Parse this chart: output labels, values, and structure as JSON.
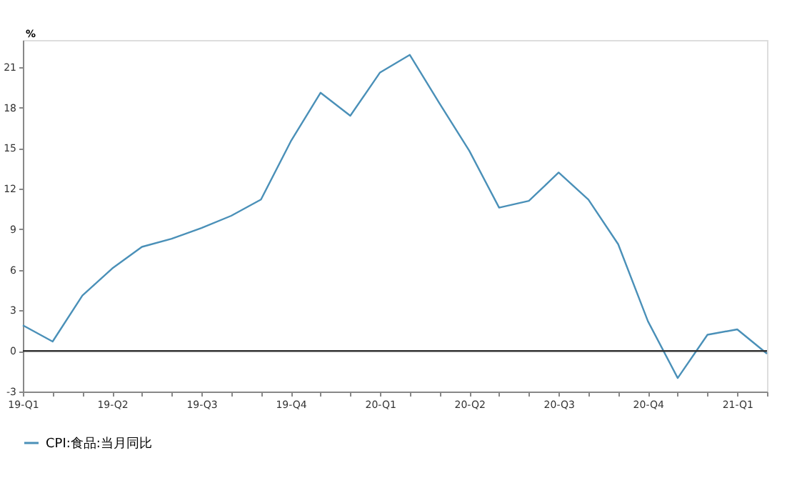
{
  "chart_data": {
    "type": "line",
    "ylabel": "%",
    "categories": [
      "19-Q1",
      null,
      null,
      "19-Q2",
      null,
      null,
      "19-Q3",
      null,
      null,
      "19-Q4",
      null,
      null,
      "20-Q1",
      null,
      null,
      "20-Q2",
      null,
      null,
      "20-Q3",
      null,
      null,
      "20-Q4",
      null,
      null,
      "21-Q1",
      null
    ],
    "series": [
      {
        "name": "CPI:食品:当月同比",
        "color": "#4a90b8",
        "values": [
          1.9,
          0.7,
          4.1,
          6.1,
          7.7,
          8.3,
          9.1,
          10.0,
          11.2,
          15.5,
          19.1,
          17.4,
          20.6,
          21.9,
          18.3,
          14.8,
          10.6,
          11.1,
          13.2,
          11.2,
          7.9,
          2.2,
          -2.0,
          1.2,
          1.6,
          -0.2
        ]
      }
    ],
    "ylim": [
      -3,
      23
    ],
    "yticks": [
      -3,
      0,
      3,
      6,
      9,
      12,
      15,
      18,
      21
    ],
    "ref_lines": [
      {
        "axis": "y",
        "value": 0,
        "color": "#333333"
      }
    ],
    "grid": false,
    "legend": "bottom",
    "marker": "none",
    "line_style": "solid"
  }
}
